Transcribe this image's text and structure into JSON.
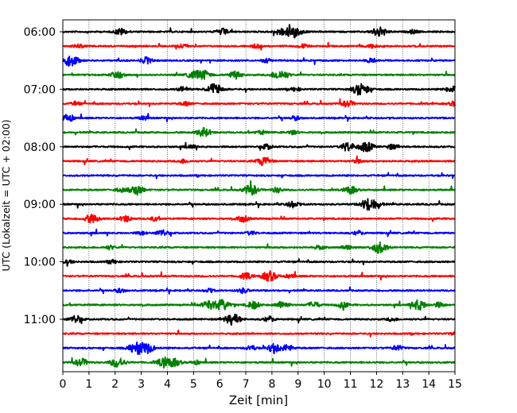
{
  "chart_data": {
    "type": "line",
    "title": "",
    "xlabel": "Zeit  [min]",
    "ylabel": "UTC (Lokalzeit = UTC + 02:00)",
    "xlim": [
      0,
      15
    ],
    "x_ticks": [
      "0",
      "1",
      "2",
      "3",
      "4",
      "5",
      "6",
      "7",
      "8",
      "9",
      "10",
      "11",
      "12",
      "13",
      "14",
      "15"
    ],
    "y_ticks": [
      {
        "label": "06:00",
        "trace": 0
      },
      {
        "label": "07:00",
        "trace": 4
      },
      {
        "label": "08:00",
        "trace": 8
      },
      {
        "label": "09:00",
        "trace": 12
      },
      {
        "label": "10:00",
        "trace": 16
      },
      {
        "label": "11:00",
        "trace": 20
      }
    ],
    "grid": "vertical dotted at each minute",
    "trace_interval_min": 15,
    "start_time": "06:00",
    "end_time": "11:45",
    "color_cycle": [
      "#000000",
      "#ff0000",
      "#0000ff",
      "#008000"
    ],
    "traces": [
      {
        "start": "06:00",
        "color": "#000000",
        "events": [
          [
            2.2,
            0.5
          ],
          [
            6.1,
            0.5
          ],
          [
            8.3,
            0.5
          ],
          [
            8.8,
            1.0
          ],
          [
            12.1,
            0.8
          ],
          [
            13.4,
            0.3
          ]
        ]
      },
      {
        "start": "06:15",
        "color": "#ff0000",
        "events": [
          [
            0.6,
            0.3
          ],
          [
            4.6,
            0.35
          ],
          [
            7.4,
            0.3
          ],
          [
            9.2,
            0.3
          ],
          [
            11.8,
            0.3
          ]
        ]
      },
      {
        "start": "06:30",
        "color": "#0000ff",
        "events": [
          [
            0.3,
            0.9
          ],
          [
            3.2,
            0.5
          ],
          [
            7.8,
            0.3
          ],
          [
            11.8,
            0.3
          ]
        ]
      },
      {
        "start": "06:45",
        "color": "#008000",
        "events": [
          [
            2.1,
            0.6
          ],
          [
            5.0,
            0.6
          ],
          [
            5.4,
            0.7
          ],
          [
            6.6,
            0.6
          ],
          [
            8.2,
            0.6
          ],
          [
            8.5,
            0.4
          ]
        ]
      },
      {
        "start": "07:00",
        "color": "#000000",
        "events": [
          [
            4.6,
            0.4
          ],
          [
            5.8,
            0.9
          ],
          [
            8.9,
            0.3
          ],
          [
            11.4,
            1.0
          ],
          [
            14.9,
            0.6
          ]
        ]
      },
      {
        "start": "07:15",
        "color": "#ff0000",
        "events": [
          [
            0.5,
            0.3
          ],
          [
            4.7,
            0.3
          ],
          [
            10.9,
            0.5
          ],
          [
            15.0,
            0.4
          ]
        ]
      },
      {
        "start": "07:30",
        "color": "#0000ff",
        "events": [
          [
            0.2,
            0.6
          ],
          [
            3.1,
            0.3
          ],
          [
            8.9,
            0.3
          ]
        ]
      },
      {
        "start": "07:45",
        "color": "#008000",
        "events": [
          [
            5.4,
            0.7
          ],
          [
            7.6,
            0.3
          ],
          [
            8.8,
            0.3
          ]
        ]
      },
      {
        "start": "08:00",
        "color": "#000000",
        "events": [
          [
            4.9,
            0.3
          ],
          [
            7.8,
            0.4
          ],
          [
            10.9,
            0.7
          ],
          [
            11.6,
            0.8
          ],
          [
            12.6,
            0.4
          ]
        ]
      },
      {
        "start": "08:15",
        "color": "#ff0000",
        "events": [
          [
            4.6,
            0.3
          ],
          [
            7.7,
            0.7
          ],
          [
            11.3,
            0.3
          ]
        ]
      },
      {
        "start": "08:30",
        "color": "#0000ff",
        "events": []
      },
      {
        "start": "08:45",
        "color": "#008000",
        "events": [
          [
            2.2,
            0.3
          ],
          [
            2.8,
            0.8
          ],
          [
            7.2,
            0.8
          ],
          [
            8.2,
            0.4
          ],
          [
            11.0,
            0.6
          ]
        ]
      },
      {
        "start": "09:00",
        "color": "#000000",
        "events": [
          [
            8.8,
            0.5
          ],
          [
            11.6,
            0.6
          ],
          [
            11.9,
            0.8
          ]
        ]
      },
      {
        "start": "09:15",
        "color": "#ff0000",
        "events": [
          [
            1.1,
            0.7
          ],
          [
            2.4,
            0.5
          ],
          [
            3.5,
            0.3
          ],
          [
            6.9,
            0.5
          ]
        ]
      },
      {
        "start": "09:30",
        "color": "#0000ff",
        "events": [
          [
            3.0,
            0.3
          ],
          [
            3.8,
            0.5
          ],
          [
            7.2,
            0.3
          ],
          [
            11.3,
            0.3
          ]
        ]
      },
      {
        "start": "09:45",
        "color": "#008000",
        "events": [
          [
            1.8,
            0.3
          ],
          [
            9.8,
            0.3
          ],
          [
            10.9,
            0.4
          ],
          [
            12.1,
            0.9
          ]
        ]
      },
      {
        "start": "10:00",
        "color": "#000000",
        "events": [
          [
            0.2,
            0.3
          ],
          [
            1.9,
            0.3
          ]
        ]
      },
      {
        "start": "10:15",
        "color": "#ff0000",
        "events": [
          [
            7.0,
            0.5
          ],
          [
            7.9,
            0.8
          ],
          [
            8.7,
            0.3
          ]
        ]
      },
      {
        "start": "10:30",
        "color": "#0000ff",
        "events": [
          [
            2.2,
            0.3
          ],
          [
            5.6,
            0.3
          ],
          [
            6.9,
            0.4
          ]
        ]
      },
      {
        "start": "10:45",
        "color": "#008000",
        "events": [
          [
            5.6,
            0.7
          ],
          [
            6.1,
            0.8
          ],
          [
            7.3,
            0.6
          ],
          [
            8.4,
            0.6
          ],
          [
            9.6,
            0.5
          ],
          [
            10.7,
            0.5
          ],
          [
            13.6,
            0.8
          ],
          [
            14.4,
            0.4
          ]
        ]
      },
      {
        "start": "11:00",
        "color": "#000000",
        "events": [
          [
            0.5,
            0.6
          ],
          [
            6.5,
            0.9
          ],
          [
            7.9,
            0.4
          ],
          [
            12.6,
            0.3
          ]
        ]
      },
      {
        "start": "11:15",
        "color": "#ff0000",
        "events": [
          [
            15.0,
            0.3
          ]
        ]
      },
      {
        "start": "11:30",
        "color": "#0000ff",
        "events": [
          [
            2.8,
            0.9
          ],
          [
            3.2,
            0.8
          ],
          [
            7.2,
            0.4
          ],
          [
            8.1,
            0.7
          ],
          [
            8.6,
            0.5
          ],
          [
            12.8,
            0.4
          ]
        ]
      },
      {
        "start": "11:45",
        "color": "#008000",
        "events": [
          [
            0.7,
            0.6
          ],
          [
            2.1,
            0.8
          ],
          [
            3.9,
            0.8
          ],
          [
            4.3,
            0.5
          ],
          [
            5.1,
            0.3
          ]
        ]
      }
    ]
  }
}
